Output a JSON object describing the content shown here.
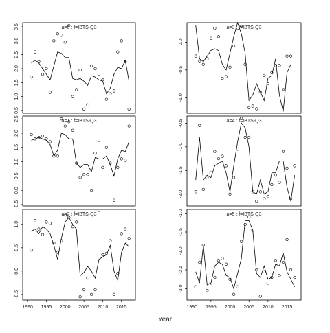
{
  "x_axis_title": "Year",
  "chart_data": [
    {
      "type": "scatter",
      "strip": "a=0  :  f=IBTS-Q3",
      "x": [
        1991,
        1992,
        1993,
        1994,
        1995,
        1996,
        1997,
        1998,
        1999,
        2000,
        2001,
        2002,
        2003,
        2004,
        2005,
        2006,
        2007,
        2008,
        2009,
        2010,
        2011,
        2012,
        2013,
        2014,
        2015,
        2016,
        2017
      ],
      "values": [
        1.7,
        2.6,
        2.25,
        1.8,
        2.0,
        1.15,
        3.0,
        3.25,
        3.2,
        2.95,
        3.55,
        1.0,
        1.25,
        1.95,
        0.55,
        0.7,
        2.1,
        2.0,
        1.8,
        1.6,
        0.9,
        1.1,
        1.2,
        2.6,
        3.0,
        2.25,
        0.55
      ],
      "fit": [
        2.2,
        2.3,
        2.2,
        2.0,
        1.8,
        1.6,
        2.1,
        2.6,
        2.55,
        2.4,
        2.4,
        1.65,
        1.6,
        1.65,
        1.55,
        1.4,
        1.75,
        1.7,
        1.6,
        1.55,
        1.1,
        1.3,
        1.8,
        2.05,
        2.0,
        2.3,
        1.55
      ],
      "xlim": [
        1988.7,
        2018.7
      ],
      "ylim": [
        0.4,
        3.65
      ],
      "yticks": [
        0.5,
        {
          "value": 1,
          "label": "1.0"
        },
        1.5,
        {
          "value": 2,
          "label": "2.0"
        },
        2.5,
        {
          "value": 3,
          "label": "3.0"
        },
        3.5
      ]
    },
    {
      "type": "scatter",
      "strip": "a=3  :  f=IBTS-Q3",
      "x": [
        1991,
        1992,
        1993,
        1994,
        1995,
        1996,
        1997,
        1998,
        1999,
        2000,
        2001,
        2002,
        2003,
        2004,
        2005,
        2006,
        2007,
        2008,
        2009,
        2010,
        2011,
        2012,
        2013,
        2014,
        2015,
        2016
      ],
      "values": [
        -0.25,
        -0.35,
        -0.4,
        -0.3,
        0.07,
        0.25,
        0.1,
        -0.65,
        -0.62,
        -0.45,
        -0.07,
        0.25,
        0.28,
        -0.4,
        -1.18,
        -1.15,
        -1.2,
        -0.9,
        -0.6,
        -0.75,
        -0.55,
        -0.42,
        -0.42,
        -0.85,
        -0.25,
        -0.25
      ],
      "fit": [
        0.3,
        -0.3,
        -0.35,
        -0.25,
        -0.15,
        -0.12,
        -0.15,
        -0.4,
        -0.5,
        -0.2,
        0.1,
        0.35,
        0.15,
        -0.2,
        -1.05,
        -0.95,
        -0.75,
        -0.9,
        -1.05,
        -0.65,
        -0.6,
        -0.3,
        -0.95,
        -1.25,
        -0.55,
        -0.4
      ],
      "xlim": [
        1988.7,
        2018.7
      ],
      "ylim": [
        -1.28,
        0.35
      ],
      "yticks": [
        {
          "value": 0,
          "label": "0.0"
        },
        -0.5,
        {
          "value": -1,
          "label": "-1.0"
        }
      ]
    },
    {
      "type": "scatter",
      "strip": "a=1  :  f=IBTS-Q3",
      "x": [
        1991,
        1992,
        1993,
        1994,
        1995,
        1996,
        1997,
        1998,
        1999,
        2000,
        2001,
        2002,
        2003,
        2004,
        2005,
        2006,
        2007,
        2008,
        2009,
        2010,
        2011,
        2012,
        2013,
        2014,
        2015,
        2016,
        2017
      ],
      "values": [
        1.95,
        1.8,
        1.85,
        1.9,
        1.8,
        1.7,
        1.2,
        1.2,
        2.5,
        2.25,
        2.4,
        2.1,
        0.95,
        0.45,
        0.55,
        0.55,
        0.0,
        1.3,
        1.75,
        0.8,
        1.5,
        0.95,
        -0.35,
        0.8,
        1.1,
        1.05,
        2.25
      ],
      "fit": [
        1.75,
        1.8,
        1.85,
        1.8,
        1.75,
        1.6,
        1.2,
        1.4,
        2.0,
        1.95,
        1.8,
        1.8,
        0.95,
        0.8,
        0.9,
        0.9,
        0.65,
        1.15,
        1.1,
        1.1,
        1.2,
        0.9,
        0.5,
        1.1,
        1.4,
        1.35,
        1.7
      ],
      "xlim": [
        1988.7,
        2018.7
      ],
      "ylim": [
        -0.55,
        2.6
      ],
      "yticks": [
        -0.5,
        {
          "value": 0,
          "label": "0.0"
        },
        0.5,
        {
          "value": 1,
          "label": "1.0"
        },
        1.5,
        {
          "value": 2,
          "label": "2.0"
        },
        2.5
      ]
    },
    {
      "type": "scatter",
      "strip": "a=4  :  f=IBTS-Q3",
      "x": [
        1991,
        1992,
        1993,
        1994,
        1995,
        1996,
        1997,
        1998,
        1999,
        2000,
        2001,
        2002,
        2003,
        2004,
        2005,
        2006,
        2007,
        2008,
        2009,
        2010,
        2011,
        2012,
        2013,
        2014,
        2015,
        2016,
        2017
      ],
      "values": [
        -1.95,
        -0.55,
        -1.9,
        -1.65,
        -1.55,
        -1.1,
        -1.25,
        -1.2,
        -1.4,
        -2.0,
        -1.65,
        -1.05,
        -0.4,
        -0.8,
        -0.8,
        -1.95,
        -2.15,
        -1.95,
        -2.1,
        -2.05,
        -1.8,
        -1.6,
        -1.75,
        -1.1,
        -1.45,
        -2.1,
        -1.4
      ],
      "fit": [
        -1.7,
        -0.8,
        -1.7,
        -1.6,
        -1.65,
        -1.4,
        -1.35,
        -1.3,
        -1.55,
        -1.95,
        -1.4,
        -0.9,
        -0.5,
        -0.6,
        -1.0,
        -1.95,
        -2.0,
        -1.7,
        -2.0,
        -1.95,
        -1.55,
        -1.55,
        -1.3,
        -1.3,
        -1.85,
        -2.15,
        -1.6
      ],
      "xlim": [
        1988.7,
        2018.7
      ],
      "ylim": [
        -2.25,
        -0.35
      ],
      "yticks": [
        -0.5,
        {
          "value": -1,
          "label": "-1.0"
        },
        -1.5,
        {
          "value": -2,
          "label": "-2.0"
        }
      ]
    },
    {
      "type": "scatter",
      "strip": "a=2  :  f=IBTS-Q3",
      "x": [
        1991,
        1992,
        1993,
        1994,
        1995,
        1996,
        1997,
        1998,
        1999,
        2000,
        2001,
        2002,
        2003,
        2004,
        2005,
        2006,
        2007,
        2008,
        2009,
        2010,
        2011,
        2012,
        2013,
        2014,
        2015,
        2016,
        2017
      ],
      "values": [
        0.45,
        1.08,
        0.9,
        0.78,
        1.05,
        1.02,
        0.6,
        0.4,
        0.65,
        1.2,
        1.15,
        0.95,
        1.05,
        -0.55,
        -0.4,
        -0.15,
        -0.5,
        -0.4,
        1.3,
        0.35,
        0.38,
        0.65,
        -0.5,
        -0.05,
        0.8,
        0.9,
        0.7
      ],
      "fit": [
        0.85,
        0.9,
        0.8,
        0.95,
        0.9,
        0.8,
        0.55,
        0.25,
        0.7,
        1.05,
        1.15,
        1.0,
        0.9,
        -0.1,
        -0.03,
        0.1,
        0.0,
        -0.15,
        0.25,
        0.3,
        0.35,
        0.55,
        0.0,
        -0.2,
        0.4,
        0.6,
        0.52
      ],
      "xlim": [
        1988.7,
        2018.7
      ],
      "ylim": [
        -0.62,
        1.32
      ],
      "yticks": [
        -0.5,
        {
          "value": 0,
          "label": "0.0"
        },
        0.5,
        {
          "value": 1,
          "label": "1.0"
        }
      ],
      "xticks": [
        1990,
        1995,
        2000,
        2005,
        2010,
        2015
      ]
    },
    {
      "type": "scatter",
      "strip": "a=5  :  f=IBTS-Q3",
      "x": [
        1991,
        1992,
        1993,
        1994,
        1995,
        1996,
        1997,
        1998,
        1999,
        2000,
        2001,
        2002,
        2003,
        2004,
        2005,
        2006,
        2007,
        2008,
        2009,
        2010,
        2011,
        2012,
        2013,
        2014,
        2015,
        2016,
        2017
      ],
      "values": [
        -2.95,
        -2.3,
        -1.85,
        -3.05,
        -2.85,
        -2.7,
        -2.25,
        -2.2,
        -2.35,
        -2.75,
        -3.15,
        -2.95,
        -1.75,
        -1.3,
        -1.1,
        -1.45,
        -2.5,
        -3.2,
        -2.55,
        -2.85,
        -2.7,
        -2.25,
        -2.65,
        -2.3,
        -1.7,
        -2.5,
        -2.7
      ],
      "fit": [
        -2.55,
        -2.85,
        -1.85,
        -2.9,
        -2.85,
        -2.4,
        -2.3,
        -2.35,
        -2.65,
        -2.7,
        -3.0,
        -2.6,
        -2.2,
        -1.2,
        -1.2,
        -1.45,
        -2.6,
        -2.7,
        -2.4,
        -2.75,
        -2.7,
        -2.35,
        -2.4,
        -2.05,
        -2.55,
        -2.75,
        -2.95
      ],
      "xlim": [
        1988.7,
        2018.7
      ],
      "ylim": [
        -3.3,
        -0.9
      ],
      "yticks": [
        {
          "value": -1,
          "label": "-1.0"
        },
        -1.5,
        {
          "value": -2,
          "label": "-2.0"
        },
        -2.5,
        {
          "value": -3,
          "label": "-3.0"
        }
      ],
      "xticks": [
        1990,
        1995,
        2000,
        2005,
        2010,
        2015
      ]
    }
  ]
}
